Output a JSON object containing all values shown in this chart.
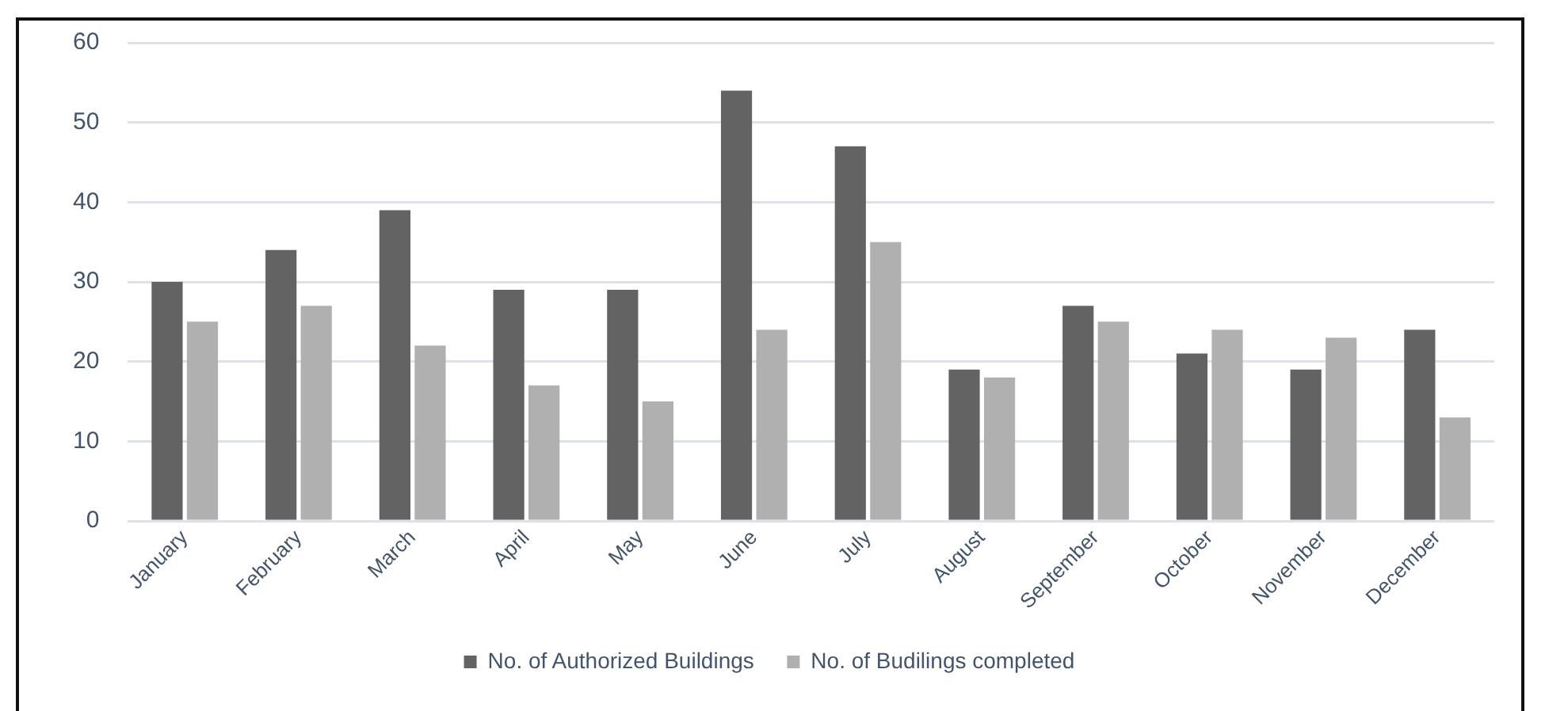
{
  "chart_data": {
    "type": "bar",
    "categories": [
      "January",
      "February",
      "March",
      "April",
      "May",
      "June",
      "July",
      "August",
      "September",
      "October",
      "November",
      "December"
    ],
    "series": [
      {
        "name": "No. of Authorized Buildings",
        "color": "#636363",
        "values": [
          30,
          34,
          39,
          29,
          29,
          54,
          47,
          19,
          27,
          21,
          19,
          24
        ]
      },
      {
        "name": "No. of Budilings completed",
        "color": "#b0b0b0",
        "values": [
          25,
          27,
          22,
          17,
          15,
          24,
          35,
          18,
          25,
          24,
          23,
          13
        ]
      }
    ],
    "ylim": [
      0,
      60
    ],
    "yticks": [
      0,
      10,
      20,
      30,
      40,
      50,
      60
    ],
    "grid": "y",
    "legend": "bottom"
  }
}
